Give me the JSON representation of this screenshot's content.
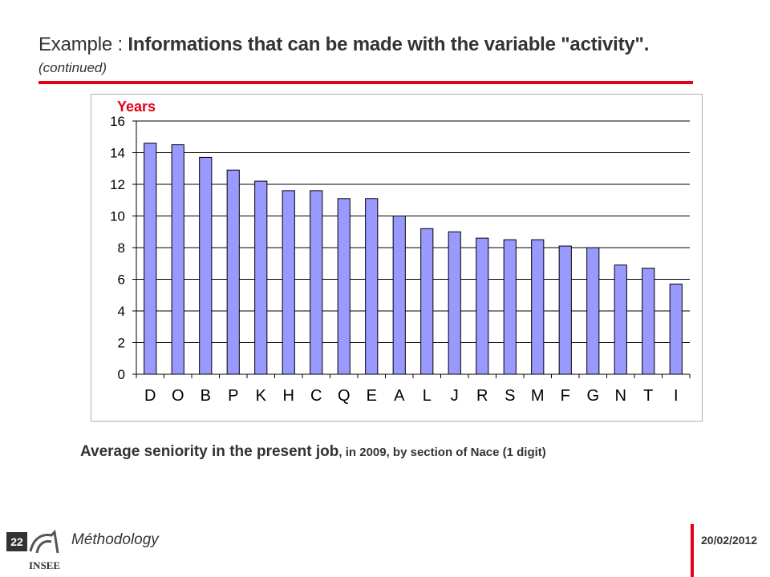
{
  "slide": {
    "title_prefix": "Example : ",
    "title_bold": "Informations that can be made with the variable \"activity\".",
    "subtitle": "(continued)",
    "caption_main": "Average seniority in the present job",
    "caption_detail": ", in 2009, by section of Nace (1 digit)",
    "page_number": "22",
    "footer_label": "Méthodology",
    "date": "20/02/2012",
    "logo_text": "INSEE"
  },
  "colors": {
    "accent": "#e2001a",
    "bar_fill": "#9999ff",
    "bar_stroke": "#000000",
    "axis_title": "#e2001a"
  },
  "chart_data": {
    "type": "bar",
    "title": "",
    "ylabel": "Years",
    "xlabel": "",
    "ylim": [
      0,
      16
    ],
    "yticks": [
      0,
      2,
      4,
      6,
      8,
      10,
      12,
      14,
      16
    ],
    "grid": true,
    "legend": "none",
    "categories": [
      "D",
      "O",
      "B",
      "P",
      "K",
      "H",
      "C",
      "Q",
      "E",
      "A",
      "L",
      "J",
      "R",
      "S",
      "M",
      "F",
      "G",
      "N",
      "T",
      "I"
    ],
    "values": [
      14.6,
      14.5,
      13.7,
      12.9,
      12.2,
      11.6,
      11.6,
      11.1,
      11.1,
      10.0,
      9.2,
      9.0,
      8.6,
      8.5,
      8.5,
      8.1,
      8.0,
      6.9,
      6.7,
      5.7
    ]
  }
}
